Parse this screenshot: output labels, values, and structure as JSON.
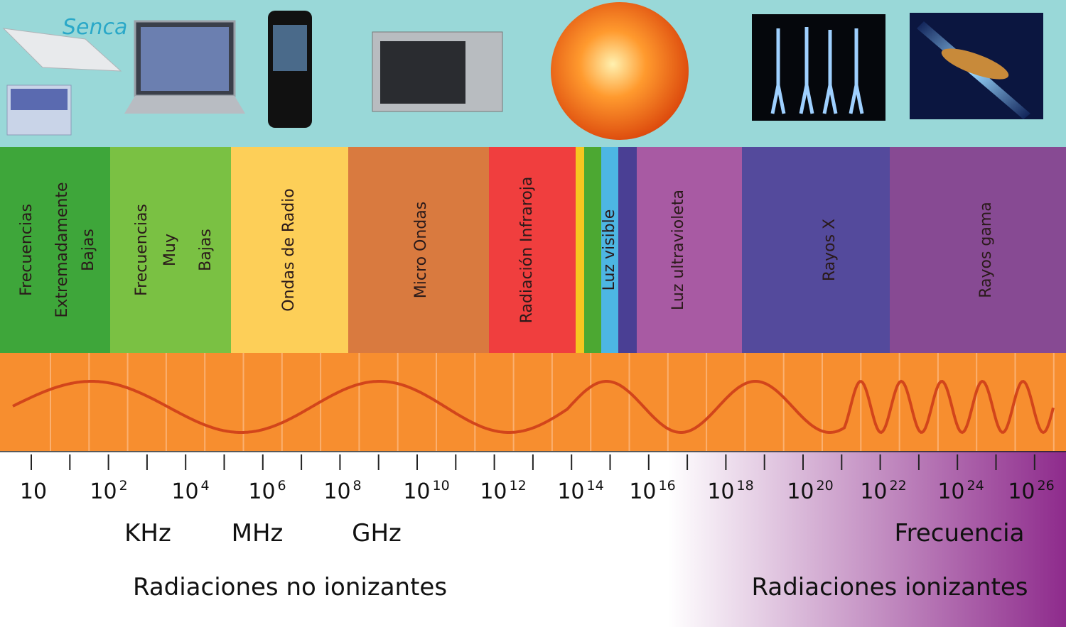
{
  "logo": "Senca",
  "bands": [
    {
      "lines": [
        "Frecuencias",
        "Extremadamente",
        "Bajas"
      ]
    },
    {
      "lines": [
        "Frecuencias",
        "Muy",
        "Bajas"
      ]
    },
    {
      "lines": [
        "Ondas de Radio"
      ]
    },
    {
      "lines": [
        "Micro Ondas"
      ]
    },
    {
      "lines": [
        "Radiación Infraroja"
      ]
    },
    {
      "lines": [
        "Luz visible"
      ]
    },
    {
      "lines": [
        "Luz ultravioleta"
      ]
    },
    {
      "lines": [
        "Rayos X"
      ]
    },
    {
      "lines": [
        "Rayos gama"
      ]
    }
  ],
  "frequency_ticks": [
    {
      "base": "10"
    },
    {
      "base": "10",
      "exp": "2"
    },
    {
      "base": "10",
      "exp": "4"
    },
    {
      "base": "10",
      "exp": "6"
    },
    {
      "base": "10",
      "exp": "8"
    },
    {
      "base": "10",
      "exp": "10"
    },
    {
      "base": "10",
      "exp": "12"
    },
    {
      "base": "10",
      "exp": "14"
    },
    {
      "base": "10",
      "exp": "16"
    },
    {
      "base": "10",
      "exp": "18"
    },
    {
      "base": "10",
      "exp": "20"
    },
    {
      "base": "10",
      "exp": "22"
    },
    {
      "base": "10",
      "exp": "24"
    },
    {
      "base": "10",
      "exp": "26"
    }
  ],
  "units": [
    "KHz",
    "MHz",
    "GHz"
  ],
  "axis_label": "Frecuencia",
  "regions": [
    "Radiaciones no ionizantes",
    "Radiaciones ionizantes"
  ]
}
